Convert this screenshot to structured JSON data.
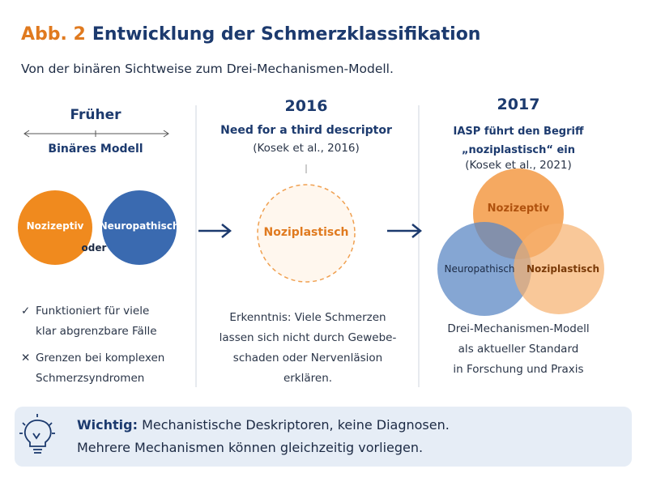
{
  "header": {
    "label": "Abb. 2",
    "title": "Entwicklung der Schmerzklassifikation",
    "subtitle": "Von der binären Sichtweise zum Drei-Mechanismen-Modell."
  },
  "columns": [
    {
      "heading": "Früher",
      "model": "Binäres Modell",
      "circles": [
        "Nozizeptiv",
        "Neuropathisch"
      ],
      "connector": "oder",
      "points": [
        {
          "icon": "✓",
          "lines": [
            "Funktioniert für viele",
            "klar abgrenzbare Fälle"
          ]
        },
        {
          "icon": "✕",
          "lines": [
            "Grenzen bei komplexen",
            "Schmerzsyndromen"
          ]
        }
      ]
    },
    {
      "year": "2016",
      "heading": "Need for a third descriptor",
      "citation": "(Kosek et al., 2016)",
      "circle": "Noziplastisch",
      "note": [
        "Erkenntnis: Viele Schmerzen",
        "lassen sich nicht durch Gewebe-",
        "schaden oder Nervenläsion",
        "erklären."
      ]
    },
    {
      "year": "2017",
      "heading": [
        "IASP führt den Begriff",
        "„noziplastisch“ ein"
      ],
      "citation": "(Kosek et al., 2021)",
      "circles": [
        "Nozizeptiv",
        "Neuropathisch",
        "Noziplastisch"
      ],
      "note": [
        "Drei-Mechanismen-Modell",
        "als aktueller Standard",
        "in Forschung und Praxis"
      ]
    }
  ],
  "footer": {
    "label": "Wichtig:",
    "lines": [
      "Mechanistische Deskriptoren, keine Diagnosen.",
      "Mehrere Mechanismen können gleichzeitig vorliegen."
    ]
  }
}
